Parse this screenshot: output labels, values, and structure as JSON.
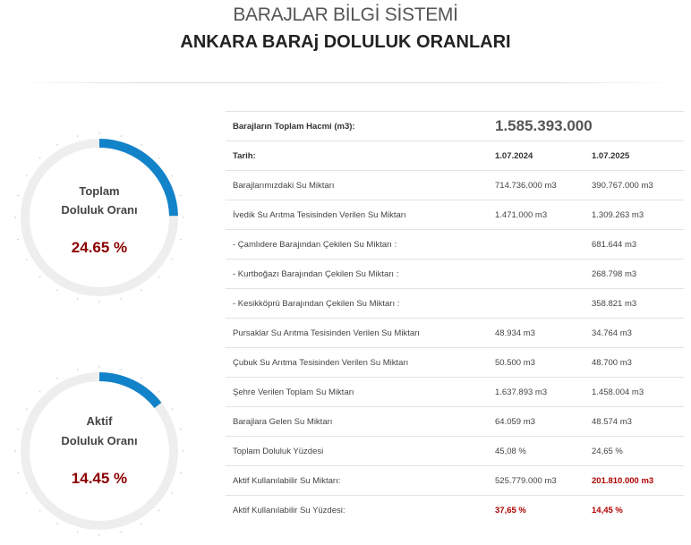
{
  "header": {
    "subtitle": "BARAJLAR BİLGİ SİSTEMİ",
    "title": "ANKARA BARAj DOLULUK ORANLARI"
  },
  "gauges": [
    {
      "label_line1": "Toplam",
      "label_line2": "Doluluk Oranı",
      "value_text": "24.65 %",
      "fraction": 0.2465
    },
    {
      "label_line1": "Aktif",
      "label_line2": "Doluluk Oranı",
      "value_text": "14.45 %",
      "fraction": 0.1445
    }
  ],
  "colors": {
    "arc": "#1283c9",
    "track": "#eeeeee",
    "value": "#8b0000",
    "highlight": "#b00000"
  },
  "table": {
    "total_volume_label": "Barajların Toplam Hacmi (m3):",
    "total_volume_value": "1.585.393.000",
    "date_label": "Tarih:",
    "date1": "1.07.2024",
    "date2": "1.07.2025",
    "rows": [
      {
        "label": "Barajlarımızdaki Su Miktarı",
        "v1": "714.736.000 m3",
        "v2": "390.767.000 m3"
      },
      {
        "label": "İvedik Su Arıtma Tesisinden Verilen Su Miktarı",
        "v1": "1.471.000 m3",
        "v2": "1.309.263 m3"
      },
      {
        "label": "- Çamlıdere Barajından Çekilen Su Miktarı :",
        "v1": "",
        "v2": "681.644 m3"
      },
      {
        "label": "- Kurtboğazı Barajından Çekilen Su Miktarı :",
        "v1": "",
        "v2": "268.798 m3"
      },
      {
        "label": "- Kesikköprü Barajından Çekilen Su Miktarı :",
        "v1": "",
        "v2": "358.821 m3"
      },
      {
        "label": "Pursaklar Su Arıtma Tesisinden Verilen Su Miktarı",
        "v1": "48.934 m3",
        "v2": "34.764 m3"
      },
      {
        "label": "Çubuk Su Arıtma Tesisinden Verilen Su Miktarı",
        "v1": "50.500 m3",
        "v2": "48.700 m3"
      },
      {
        "label": "Şehre Verilen Toplam Su Miktarı",
        "v1": "1.637.893 m3",
        "v2": "1.458.004 m3"
      },
      {
        "label": "Barajlara Gelen Su Miktarı",
        "v1": "64.059 m3",
        "v2": "48.574 m3"
      },
      {
        "label": "Toplam Doluluk Yüzdesi",
        "v1": "45,08 %",
        "v2": "24,65 %"
      },
      {
        "label": "Aktif Kullanılabilir Su Miktarı:",
        "v1": "525.779.000 m3",
        "v2": "201.810.000 m3"
      },
      {
        "label": "Aktif Kullanılabilir Su Yüzdesi:",
        "v1": "37,65 %",
        "v2": "14,45 %"
      }
    ]
  }
}
